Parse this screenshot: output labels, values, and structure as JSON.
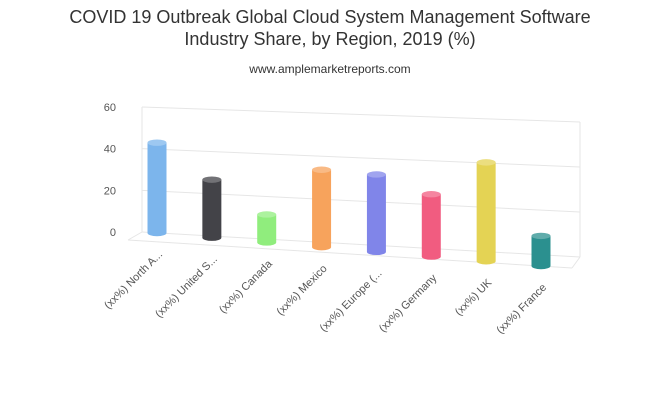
{
  "chart_data": {
    "type": "bar",
    "title_line1": "COVID 19 Outbreak Global Cloud System Management Software",
    "title_line2": "Industry Share, by Region, 2019 (%)",
    "subtitle": "www.amplemarketreports.com",
    "categories": [
      "(xx%) North A...",
      "(xx%) United S...",
      "(xx%) Canada",
      "(xx%) Mexico",
      "(xx%) Europe (...",
      "(xx%) Germany",
      "(xx%) UK",
      "(xx%) France"
    ],
    "values": [
      42,
      27,
      13,
      36,
      36,
      29,
      46,
      14
    ],
    "colors": [
      "#7cb5ec",
      "#434348",
      "#90ed7d",
      "#f7a35c",
      "#8085e9",
      "#f15c80",
      "#e4d354",
      "#2b908f"
    ],
    "yticks": [
      "0",
      "20",
      "40",
      "60"
    ],
    "ylim": [
      0,
      60
    ],
    "grid": true,
    "legend": "none"
  }
}
